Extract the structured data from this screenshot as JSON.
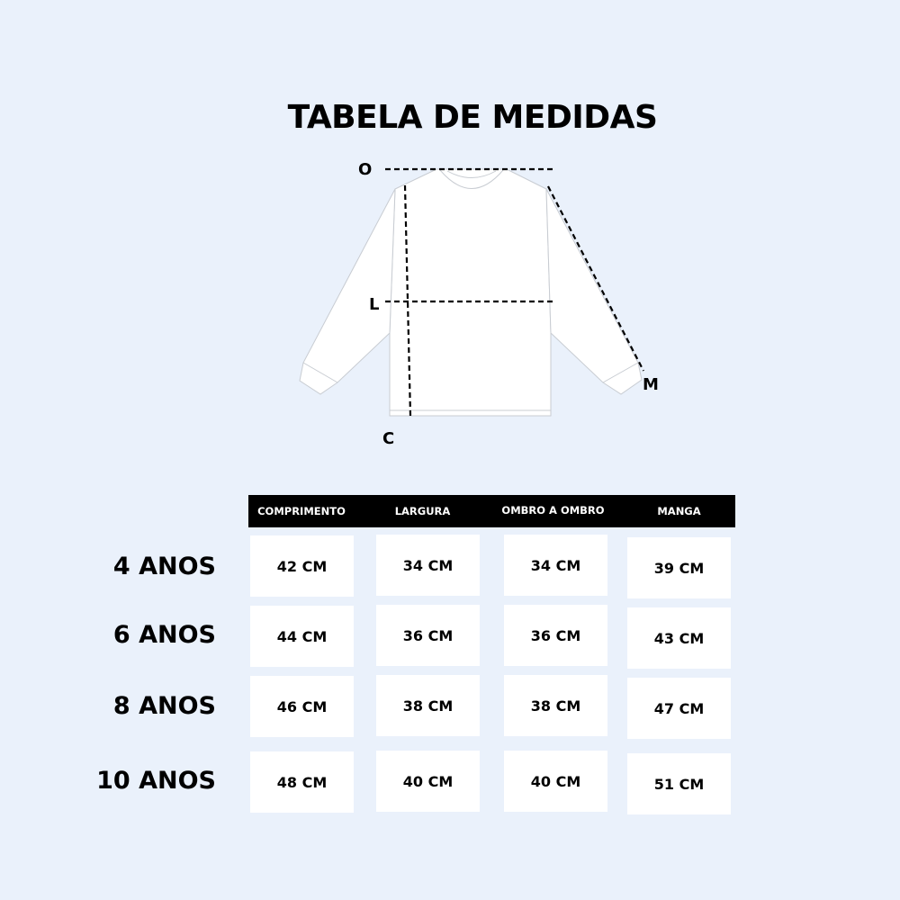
{
  "title": "TABELA DE MEDIDAS",
  "diagram": {
    "labels": {
      "top": "O",
      "middle": "L",
      "bottom": "C",
      "sleeve": "M"
    }
  },
  "table": {
    "headers": [
      "COMPRIMENTO",
      "LARGURA",
      "OMBRO A OMBRO",
      "MANGA"
    ],
    "rows": [
      {
        "size": "4 ANOS",
        "values": [
          "42 CM",
          "34 CM",
          "34 CM",
          "39 CM"
        ]
      },
      {
        "size": "6 ANOS",
        "values": [
          "44 CM",
          "36 CM",
          "36 CM",
          "43 CM"
        ]
      },
      {
        "size": "8 ANOS",
        "values": [
          "46 CM",
          "38 CM",
          "38 CM",
          "47 CM"
        ]
      },
      {
        "size": "10 ANOS",
        "values": [
          "48 CM",
          "40 CM",
          "40 CM",
          "51 CM"
        ]
      }
    ]
  },
  "colors": {
    "background": "#eaf1fb",
    "header": "#000000",
    "cell": "#ffffff"
  }
}
